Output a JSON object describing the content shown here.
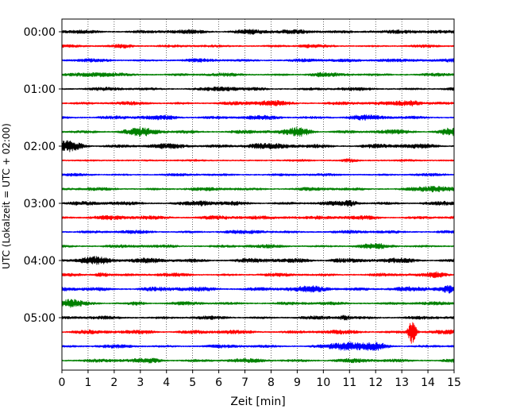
{
  "chart_data": {
    "type": "line",
    "subtype": "seismogram-dayplot",
    "xlabel": "Zeit  [min]",
    "ylabel": "UTC (Lokalzeit = UTC + 02:00)",
    "xlim": [
      0,
      15
    ],
    "x_ticks": [
      "0",
      "1",
      "2",
      "3",
      "4",
      "5",
      "6",
      "7",
      "8",
      "9",
      "10",
      "11",
      "12",
      "13",
      "14",
      "15"
    ],
    "x_grid": "dotted vertical at each minute",
    "y_tick_labels": [
      "00:00",
      "01:00",
      "02:00",
      "03:00",
      "04:00",
      "05:00"
    ],
    "y_tick_rows": [
      0,
      4,
      8,
      12,
      16,
      20
    ],
    "trace_interval_minutes": 15,
    "trace_colors": [
      "#000000",
      "#ff0000",
      "#0000ff",
      "#008000"
    ],
    "traces": [
      {
        "row": 0,
        "start": "00:00",
        "color": "#000000",
        "amplitude": 3,
        "events": [
          {
            "t": 7.3,
            "amp": 5,
            "width": 0.6
          },
          {
            "t": 11.8,
            "amp": 4,
            "width": 0.3
          }
        ]
      },
      {
        "row": 1,
        "start": "00:15",
        "color": "#ff0000",
        "amplitude": 2,
        "events": [
          {
            "t": 2.4,
            "amp": 4,
            "width": 0.4
          },
          {
            "t": 9.4,
            "amp": 3,
            "width": 0.3
          }
        ]
      },
      {
        "row": 2,
        "start": "00:30",
        "color": "#0000ff",
        "amplitude": 2.5,
        "events": [
          {
            "t": 12.3,
            "amp": 4,
            "width": 0.5
          }
        ]
      },
      {
        "row": 3,
        "start": "00:45",
        "color": "#008000",
        "amplitude": 2.5,
        "events": [
          {
            "t": 1.4,
            "amp": 4,
            "width": 0.6
          },
          {
            "t": 9.8,
            "amp": 3.5,
            "width": 0.4
          }
        ]
      },
      {
        "row": 4,
        "start": "01:00",
        "color": "#000000",
        "amplitude": 2.5,
        "events": [
          {
            "t": 6.2,
            "amp": 4,
            "width": 0.5
          }
        ]
      },
      {
        "row": 5,
        "start": "01:15",
        "color": "#ff0000",
        "amplitude": 2.5,
        "events": [
          {
            "t": 8.0,
            "amp": 5,
            "width": 0.6
          },
          {
            "t": 13.3,
            "amp": 6,
            "width": 0.5
          }
        ]
      },
      {
        "row": 6,
        "start": "01:30",
        "color": "#0000ff",
        "amplitude": 3,
        "events": [
          {
            "t": 4.2,
            "amp": 4,
            "width": 0.5
          },
          {
            "t": 11.4,
            "amp": 4,
            "width": 0.5
          }
        ]
      },
      {
        "row": 7,
        "start": "01:45",
        "color": "#008000",
        "amplitude": 3,
        "events": [
          {
            "t": 3.0,
            "amp": 6,
            "width": 0.6
          },
          {
            "t": 9.1,
            "amp": 7,
            "width": 0.5
          },
          {
            "t": 14.9,
            "amp": 7,
            "width": 0.4
          }
        ]
      },
      {
        "row": 8,
        "start": "02:00",
        "color": "#000000",
        "amplitude": 3.5,
        "events": [
          {
            "t": 0.3,
            "amp": 8,
            "width": 0.5
          },
          {
            "t": 7.4,
            "amp": 5,
            "width": 0.6
          }
        ]
      },
      {
        "row": 9,
        "start": "02:15",
        "color": "#ff0000",
        "amplitude": 1.5,
        "events": [
          {
            "t": 11.0,
            "amp": 3,
            "width": 0.4
          }
        ]
      },
      {
        "row": 10,
        "start": "02:30",
        "color": "#0000ff",
        "amplitude": 2,
        "events": []
      },
      {
        "row": 11,
        "start": "02:45",
        "color": "#008000",
        "amplitude": 2.5,
        "events": [
          {
            "t": 14.2,
            "amp": 5,
            "width": 0.6
          },
          {
            "t": 6.7,
            "amp": 3,
            "width": 0.4
          }
        ]
      },
      {
        "row": 12,
        "start": "03:00",
        "color": "#000000",
        "amplitude": 3,
        "events": [
          {
            "t": 5.3,
            "amp": 5,
            "width": 0.4
          },
          {
            "t": 11.0,
            "amp": 5,
            "width": 0.3
          }
        ]
      },
      {
        "row": 13,
        "start": "03:15",
        "color": "#ff0000",
        "amplitude": 3,
        "events": [
          {
            "t": 3.2,
            "amp": 4,
            "width": 0.6
          },
          {
            "t": 8.7,
            "amp": 4,
            "width": 0.5
          }
        ]
      },
      {
        "row": 14,
        "start": "03:30",
        "color": "#0000ff",
        "amplitude": 2.5,
        "events": [
          {
            "t": 7.5,
            "amp": 3,
            "width": 0.4
          }
        ]
      },
      {
        "row": 15,
        "start": "03:45",
        "color": "#008000",
        "amplitude": 2.5,
        "events": [
          {
            "t": 12.0,
            "amp": 4,
            "width": 0.5
          }
        ]
      },
      {
        "row": 16,
        "start": "04:00",
        "color": "#000000",
        "amplitude": 3.5,
        "events": [
          {
            "t": 1.3,
            "amp": 7,
            "width": 0.7
          },
          {
            "t": 10.5,
            "amp": 5,
            "width": 0.4
          }
        ]
      },
      {
        "row": 17,
        "start": "04:15",
        "color": "#ff0000",
        "amplitude": 2.5,
        "events": [
          {
            "t": 1.5,
            "amp": 5,
            "width": 0.3
          },
          {
            "t": 14.4,
            "amp": 5,
            "width": 0.4
          }
        ]
      },
      {
        "row": 18,
        "start": "04:30",
        "color": "#0000ff",
        "amplitude": 3.5,
        "events": [
          {
            "t": 14.8,
            "amp": 7,
            "width": 0.4
          },
          {
            "t": 9.8,
            "amp": 5,
            "width": 0.6
          }
        ]
      },
      {
        "row": 19,
        "start": "04:45",
        "color": "#008000",
        "amplitude": 2.5,
        "events": [
          {
            "t": 0.3,
            "amp": 6,
            "width": 0.4
          },
          {
            "t": 2.9,
            "amp": 4,
            "width": 0.3
          }
        ]
      },
      {
        "row": 20,
        "start": "05:00",
        "color": "#000000",
        "amplitude": 2.5,
        "events": [
          {
            "t": 10.8,
            "amp": 5,
            "width": 0.2
          },
          {
            "t": 12.5,
            "amp": 3,
            "width": 0.5
          }
        ]
      },
      {
        "row": 21,
        "start": "05:15",
        "color": "#ff0000",
        "amplitude": 3,
        "events": [
          {
            "t": 13.4,
            "amp": 18,
            "width": 0.15
          },
          {
            "t": 3.3,
            "amp": 4,
            "width": 0.5
          }
        ]
      },
      {
        "row": 22,
        "start": "05:30",
        "color": "#0000ff",
        "amplitude": 2.5,
        "events": [
          {
            "t": 10.9,
            "amp": 7,
            "width": 0.6
          },
          {
            "t": 12.0,
            "amp": 6,
            "width": 0.5
          }
        ]
      },
      {
        "row": 23,
        "start": "05:45",
        "color": "#008000",
        "amplitude": 3,
        "events": [
          {
            "t": 3.5,
            "amp": 4,
            "width": 0.4
          }
        ]
      }
    ]
  }
}
